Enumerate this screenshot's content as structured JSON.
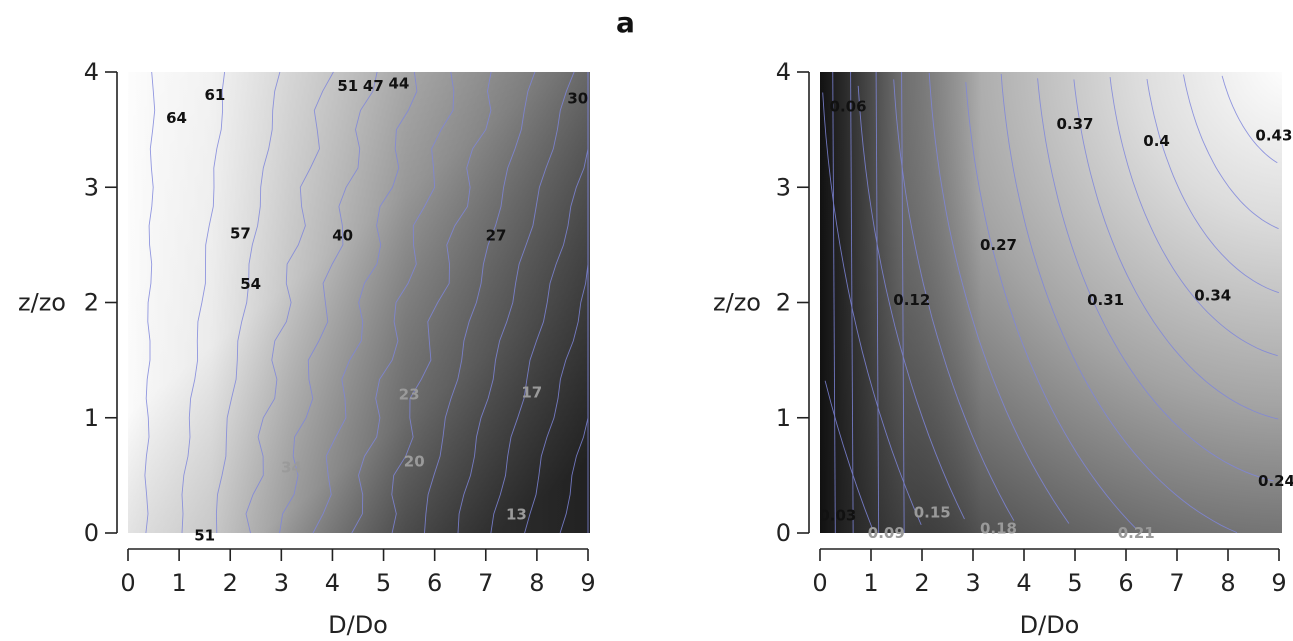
{
  "figure": {
    "panel_letter": "a"
  },
  "colors": {
    "contour_line": "#7f86dc",
    "axis": "#222222",
    "label_dark": "#111111",
    "label_light": "#9a9a9a"
  },
  "chart_data": [
    {
      "type": "heatmap",
      "title": "",
      "xlabel": "D/Do",
      "ylabel": "z/zo",
      "xlim": [
        0,
        9
      ],
      "ylim": [
        0,
        4
      ],
      "x_ticks": [
        "0",
        "1",
        "2",
        "3",
        "4",
        "5",
        "6",
        "7",
        "8",
        "9"
      ],
      "y_ticks": [
        "0",
        "1",
        "2",
        "3",
        "4"
      ],
      "colormap": "grayscale, light = high, dark = low",
      "contour_labels": [
        {
          "text": "64",
          "x": 0.95,
          "y": 3.6
        },
        {
          "text": "61",
          "x": 1.7,
          "y": 3.8
        },
        {
          "text": "51",
          "x": 4.3,
          "y": 3.88
        },
        {
          "text": "47",
          "x": 4.8,
          "y": 3.88
        },
        {
          "text": "44",
          "x": 5.3,
          "y": 3.9
        },
        {
          "text": "30",
          "x": 8.8,
          "y": 3.77
        },
        {
          "text": "57",
          "x": 2.2,
          "y": 2.6
        },
        {
          "text": "40",
          "x": 4.2,
          "y": 2.58
        },
        {
          "text": "27",
          "x": 7.2,
          "y": 2.58
        },
        {
          "text": "54",
          "x": 2.4,
          "y": 2.16
        },
        {
          "text": "23",
          "x": 5.5,
          "y": 1.2
        },
        {
          "text": "17",
          "x": 7.9,
          "y": 1.22
        },
        {
          "text": "34",
          "x": 3.2,
          "y": 0.57
        },
        {
          "text": "20",
          "x": 5.6,
          "y": 0.62
        },
        {
          "text": "13",
          "x": 7.6,
          "y": 0.16
        },
        {
          "text": "51",
          "x": 1.5,
          "y": -0.02
        }
      ]
    },
    {
      "type": "heatmap",
      "title": "",
      "xlabel": "D/Do",
      "ylabel": "z/zo",
      "xlim": [
        0,
        9
      ],
      "ylim": [
        0,
        4
      ],
      "x_ticks": [
        "0",
        "1",
        "2",
        "3",
        "4",
        "5",
        "6",
        "7",
        "8",
        "9"
      ],
      "y_ticks": [
        "0",
        "1",
        "2",
        "3",
        "4"
      ],
      "colormap": "grayscale, light = high, dark = low",
      "contour_labels": [
        {
          "text": "0.06",
          "x": 0.55,
          "y": 3.7
        },
        {
          "text": "0.37",
          "x": 5.0,
          "y": 3.55
        },
        {
          "text": "0.4",
          "x": 6.6,
          "y": 3.4
        },
        {
          "text": "0.43",
          "x": 8.9,
          "y": 3.45
        },
        {
          "text": "0.27",
          "x": 3.5,
          "y": 2.5
        },
        {
          "text": "0.12",
          "x": 1.8,
          "y": 2.02
        },
        {
          "text": "0.31",
          "x": 5.6,
          "y": 2.02
        },
        {
          "text": "0.34",
          "x": 7.7,
          "y": 2.06
        },
        {
          "text": "0.24",
          "x": 8.95,
          "y": 0.45
        },
        {
          "text": "0.03",
          "x": 0.35,
          "y": 0.15
        },
        {
          "text": "0.15",
          "x": 2.2,
          "y": 0.18
        },
        {
          "text": "0.09",
          "x": 1.3,
          "y": 0.0
        },
        {
          "text": "0.18",
          "x": 3.5,
          "y": 0.04
        },
        {
          "text": "0.21",
          "x": 6.2,
          "y": 0.0
        }
      ]
    }
  ]
}
